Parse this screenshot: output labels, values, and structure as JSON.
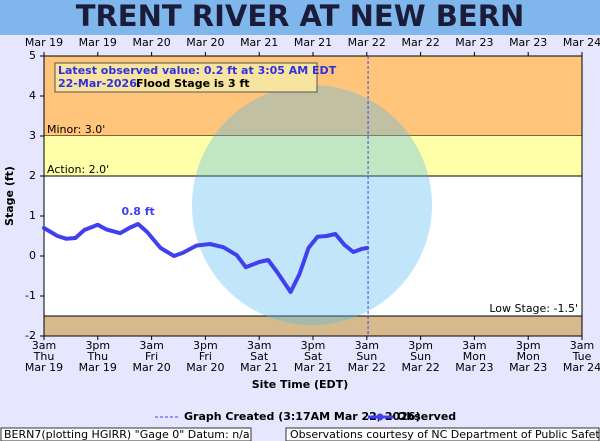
{
  "chart_data": {
    "type": "line",
    "title": "TRENT RIVER AT NEW BERN",
    "xlabel": "Site Time (EDT)",
    "ylabel": "Stage (ft)",
    "xlim": [
      "2026-03-19T03:00",
      "2026-03-24T03:00"
    ],
    "ylim": [
      -2,
      5
    ],
    "yticks": [
      -2,
      -1,
      0,
      1,
      2,
      3,
      4,
      5
    ],
    "xticks": [
      {
        "value": "2026-03-19T03:00",
        "label": [
          "3am",
          "Thu",
          "Mar 19"
        ]
      },
      {
        "value": "2026-03-19T15:00",
        "label": [
          "3pm",
          "Thu",
          "Mar 19"
        ]
      },
      {
        "value": "2026-03-20T03:00",
        "label": [
          "3am",
          "Fri",
          "Mar 20"
        ]
      },
      {
        "value": "2026-03-20T15:00",
        "label": [
          "3pm",
          "Fri",
          "Mar 20"
        ]
      },
      {
        "value": "2026-03-21T03:00",
        "label": [
          "3am",
          "Sat",
          "Mar 21"
        ]
      },
      {
        "value": "2026-03-21T15:00",
        "label": [
          "3pm",
          "Sat",
          "Mar 21"
        ]
      },
      {
        "value": "2026-03-22T03:00",
        "label": [
          "3am",
          "Sun",
          "Mar 22"
        ]
      },
      {
        "value": "2026-03-22T15:00",
        "label": [
          "3pm",
          "Sun",
          "Mar 22"
        ]
      },
      {
        "value": "2026-03-23T03:00",
        "label": [
          "3am",
          "Mon",
          "Mar 23"
        ]
      },
      {
        "value": "2026-03-23T15:00",
        "label": [
          "3pm",
          "Mon",
          "Mar 23"
        ]
      },
      {
        "value": "2026-03-24T03:00",
        "label": [
          "3am",
          "Tue",
          "Mar 24"
        ]
      }
    ],
    "x2ticks": [
      {
        "value": "2026-03-19T03:00",
        "label": "Mar 19"
      },
      {
        "value": "2026-03-19T15:00",
        "label": "Mar 19"
      },
      {
        "value": "2026-03-20T03:00",
        "label": "Mar 20"
      },
      {
        "value": "2026-03-20T15:00",
        "label": "Mar 20"
      },
      {
        "value": "2026-03-21T03:00",
        "label": "Mar 21"
      },
      {
        "value": "2026-03-21T15:00",
        "label": "Mar 21"
      },
      {
        "value": "2026-03-22T03:00",
        "label": "Mar 22"
      },
      {
        "value": "2026-03-22T15:00",
        "label": "Mar 22"
      },
      {
        "value": "2026-03-23T03:00",
        "label": "Mar 23"
      },
      {
        "value": "2026-03-23T15:00",
        "label": "Mar 23"
      },
      {
        "value": "2026-03-24T03:00",
        "label": "Mar 24"
      }
    ],
    "thresholds": [
      {
        "label": "Minor: 3.0'",
        "value": 3,
        "color": "#ffc57a",
        "fill": "above"
      },
      {
        "label": "Action: 2.0'",
        "value": 2,
        "color": "#ffffaa",
        "fill": "above"
      },
      {
        "label": "Low Stage: -1.5'",
        "value": -1.5,
        "color": "#d6b98c",
        "fill": "below"
      }
    ],
    "x": [
      "2026-03-19T03:00",
      "2026-03-19T06:00",
      "2026-03-19T08:00",
      "2026-03-19T10:00",
      "2026-03-19T12:00",
      "2026-03-19T15:00",
      "2026-03-19T17:00",
      "2026-03-19T20:00",
      "2026-03-19T22:00",
      "2026-03-20T00:00",
      "2026-03-20T02:00",
      "2026-03-20T05:00",
      "2026-03-20T08:00",
      "2026-03-20T10:00",
      "2026-03-20T13:00",
      "2026-03-20T16:00",
      "2026-03-20T19:00",
      "2026-03-20T22:00",
      "2026-03-21T00:00",
      "2026-03-21T03:00",
      "2026-03-21T05:00",
      "2026-03-21T07:00",
      "2026-03-21T10:00",
      "2026-03-21T12:00",
      "2026-03-21T14:00",
      "2026-03-21T16:00",
      "2026-03-21T18:00",
      "2026-03-21T20:00",
      "2026-03-21T22:00",
      "2026-03-22T00:00",
      "2026-03-22T02:00",
      "2026-03-22T03:05"
    ],
    "series": [
      {
        "name": "Observed",
        "color": "#4040f0",
        "values": [
          0.7,
          0.5,
          0.43,
          0.45,
          0.65,
          0.78,
          0.66,
          0.57,
          0.7,
          0.8,
          0.6,
          0.2,
          0.0,
          0.08,
          0.26,
          0.3,
          0.22,
          0.02,
          -0.28,
          -0.15,
          -0.1,
          -0.4,
          -0.9,
          -0.45,
          0.2,
          0.48,
          0.5,
          0.55,
          0.28,
          0.1,
          0.18,
          0.2
        ]
      }
    ],
    "annotations": [
      {
        "text": "0.8 ft",
        "x": "2026-03-20T00:00",
        "y": 0.8
      }
    ],
    "latest_box": {
      "line1": "Latest observed value: 0.2 ft at 3:05 AM EDT",
      "date": "22-Mar-2026.",
      "flood": "Flood Stage is 3 ft"
    },
    "created": {
      "label": "Graph Created (3:17AM Mar 22, 2026)",
      "x": "2026-03-22T03:17"
    },
    "footer_left": "BERN7(plotting HGIRR) \"Gage 0\" Datum: n/a",
    "footer_right": "Observations courtesy of NC Department of Public Safety"
  }
}
